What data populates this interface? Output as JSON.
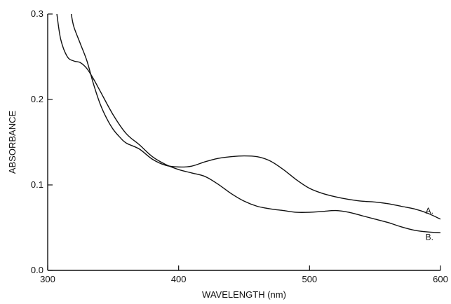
{
  "chart_data": {
    "type": "line",
    "title": "",
    "xlabel": "WAVELENGTH (nm)",
    "ylabel": "ABSORBANCE",
    "xlim": [
      300,
      600
    ],
    "ylim": [
      0.0,
      0.3
    ],
    "xticks": [
      300,
      400,
      500,
      600
    ],
    "xtick_labels": [
      "300",
      "400",
      "500",
      "600"
    ],
    "yticks": [
      0.0,
      0.1,
      0.2,
      0.3
    ],
    "ytick_labels": [
      "0.0",
      "0.1",
      "0.2",
      "0.3"
    ],
    "grid": false,
    "legend": "none",
    "series": [
      {
        "name": "A.",
        "line_color": "#111111",
        "x": [
          318,
          320,
          325,
          330,
          335,
          340,
          345,
          350,
          355,
          360,
          370,
          380,
          390,
          400,
          410,
          420,
          430,
          440,
          450,
          460,
          470,
          480,
          490,
          500,
          510,
          520,
          530,
          540,
          550,
          560,
          570,
          580,
          590,
          600
        ],
        "y": [
          0.3,
          0.285,
          0.265,
          0.245,
          0.218,
          0.195,
          0.178,
          0.165,
          0.156,
          0.149,
          0.142,
          0.13,
          0.123,
          0.121,
          0.122,
          0.127,
          0.131,
          0.133,
          0.134,
          0.133,
          0.128,
          0.118,
          0.106,
          0.096,
          0.09,
          0.086,
          0.083,
          0.081,
          0.08,
          0.078,
          0.075,
          0.072,
          0.067,
          0.06
        ]
      },
      {
        "name": "B.",
        "line_color": "#111111",
        "x": [
          307,
          310,
          315,
          320,
          325,
          330,
          335,
          340,
          350,
          360,
          370,
          380,
          390,
          400,
          410,
          420,
          430,
          440,
          450,
          460,
          470,
          480,
          490,
          500,
          510,
          520,
          530,
          540,
          550,
          560,
          570,
          580,
          590,
          600
        ],
        "y": [
          0.3,
          0.27,
          0.25,
          0.245,
          0.243,
          0.236,
          0.224,
          0.21,
          0.182,
          0.16,
          0.147,
          0.133,
          0.124,
          0.118,
          0.114,
          0.11,
          0.101,
          0.09,
          0.081,
          0.075,
          0.072,
          0.07,
          0.068,
          0.068,
          0.069,
          0.07,
          0.068,
          0.064,
          0.06,
          0.056,
          0.051,
          0.047,
          0.045,
          0.044
        ]
      }
    ]
  }
}
